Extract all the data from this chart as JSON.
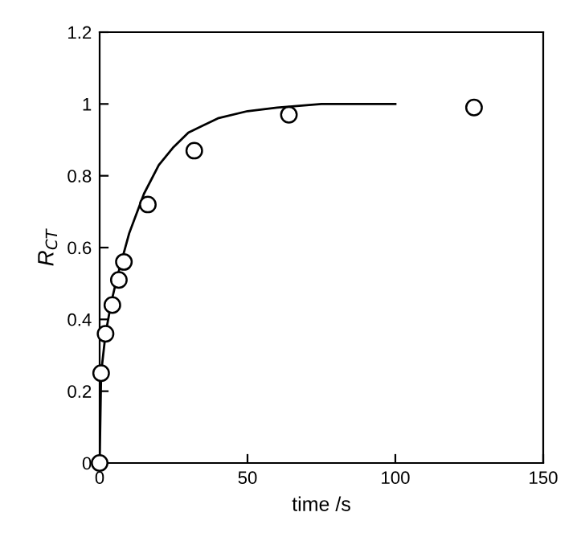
{
  "chart_data": {
    "type": "scatter",
    "xlabel": "time /s",
    "ylabel": "R$_{CT}$",
    "xlim": [
      0,
      150
    ],
    "xticks": [
      0,
      50,
      100,
      150
    ],
    "ylim": [
      0,
      1.2
    ],
    "yticks": [
      0,
      0.2,
      0.4,
      0.6,
      0.8,
      1,
      1.2
    ],
    "grid": false,
    "legend": false,
    "series": [
      {
        "color": "#000000",
        "marker": "circle",
        "x": [
          0,
          0.5,
          2,
          4.3,
          6.5,
          8.2,
          16.3,
          32,
          64,
          126.6
        ],
        "values": [
          0,
          0.25,
          0.36,
          0.44,
          0.51,
          0.56,
          0.72,
          0.87,
          0.97,
          0.99
        ]
      },
      {
        "type": "line",
        "color": "#000000",
        "marker": "none",
        "line_style": "solid",
        "x": [
          0,
          0.5,
          2,
          4,
          6,
          8,
          10,
          15,
          20,
          25,
          30,
          40,
          50,
          60,
          75,
          100
        ],
        "values": [
          0,
          0.25,
          0.36,
          0.45,
          0.52,
          0.58,
          0.64,
          0.75,
          0.83,
          0.88,
          0.92,
          0.96,
          0.98,
          0.99,
          1.0,
          1.0
        ]
      }
    ]
  }
}
